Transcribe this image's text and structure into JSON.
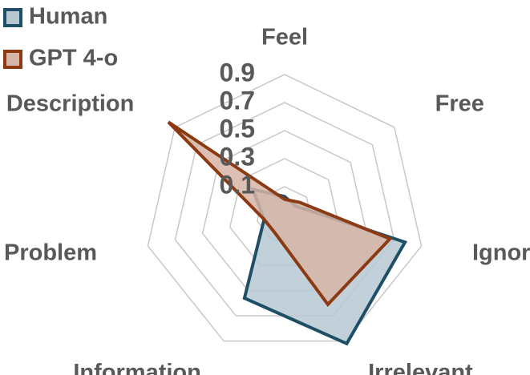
{
  "chart_data": {
    "type": "radar",
    "categories": [
      "Feel",
      "Free",
      "Ignore",
      "Irrelevant",
      "Information",
      "Problem",
      "Description"
    ],
    "series": [
      {
        "name": "Human",
        "color": "#1f4e67",
        "fill": "#b7c8d3",
        "values": [
          0.03,
          0.0,
          0.78,
          0.92,
          0.56,
          0.05,
          0.19
        ]
      },
      {
        "name": "GPT 4-o",
        "color": "#8b3a14",
        "fill": "#d7b5a6",
        "values": [
          0.01,
          0.04,
          0.67,
          0.61,
          0.05,
          0.05,
          0.96
        ]
      }
    ],
    "ylim": [
      -0.1,
      0.9
    ],
    "yticks": [
      0.1,
      0.3,
      0.5,
      0.7,
      0.9
    ],
    "grid": true,
    "legend": "top-left"
  }
}
